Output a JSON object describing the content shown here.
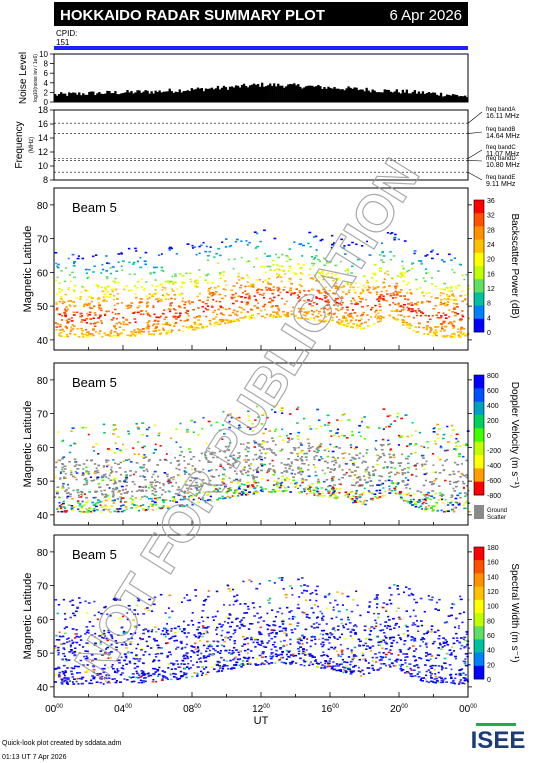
{
  "header": {
    "title": "HOKKAIDO RADAR SUMMARY PLOT",
    "date": "6 Apr 2026",
    "cpid_label": "CPID:",
    "cpid_value": "151"
  },
  "noise_panel": {
    "ylabel_main": "Noise Level",
    "ylabel_sub": "log10(noise lev / 1e6)",
    "ticks": [
      "10",
      "8",
      "6",
      "4",
      "2",
      "0"
    ]
  },
  "freq_panel": {
    "ylabel_main": "Frequency",
    "ylabel_sub": "(MHz)",
    "ticks": [
      "18",
      "16",
      "14",
      "12",
      "10",
      "8"
    ],
    "bands": [
      {
        "name": "freq bandA",
        "value": "16.11 MHz",
        "mhz": 16.11
      },
      {
        "name": "freq bandB",
        "value": "14.64 MHz",
        "mhz": 14.64
      },
      {
        "name": "freq bandC",
        "value": "11.07 MHz",
        "mhz": 11.07
      },
      {
        "name": "freq bandD",
        "value": "10.80 MHz",
        "mhz": 10.8
      },
      {
        "name": "freq bandE",
        "value": "9.11 MHz",
        "mhz": 9.11
      }
    ]
  },
  "panels": [
    {
      "id": "power",
      "beam_label": "Beam  5",
      "ylabel": "Magnetic Latitude",
      "lat_ticks": [
        "80",
        "70",
        "60",
        "50",
        "40"
      ],
      "cbar_label": "Backscatter Power (dB)",
      "cbar_ticks": [
        "36",
        "32",
        "28",
        "24",
        "20",
        "16",
        "12",
        "8",
        "4",
        "0"
      ],
      "cbar_colors": [
        "#ff0000",
        "#ff5000",
        "#ff9000",
        "#ffc000",
        "#ffff00",
        "#c0ff00",
        "#60e060",
        "#00c0a0",
        "#0080ff",
        "#0000ff"
      ]
    },
    {
      "id": "velocity",
      "beam_label": "Beam  5",
      "ylabel": "Magnetic Latitude",
      "lat_ticks": [
        "80",
        "70",
        "60",
        "50",
        "40"
      ],
      "cbar_label": "Doppler Velocity (m s⁻¹)",
      "cbar_ticks": [
        "800",
        "600",
        "400",
        "200",
        "0",
        "-200",
        "-400",
        "-600",
        "-800"
      ],
      "cbar_colors": [
        "#0000ff",
        "#0050ff",
        "#00a0c0",
        "#00d060",
        "#40ff00",
        "#c0ff00",
        "#ffff00",
        "#ffa000",
        "#ff0000"
      ],
      "ground_scatter_label": "Ground\nScatter"
    },
    {
      "id": "width",
      "beam_label": "Beam  5",
      "ylabel": "Magnetic Latitude",
      "lat_ticks": [
        "80",
        "70",
        "60",
        "50",
        "40"
      ],
      "cbar_label": "Spectral Width (m s⁻¹)",
      "cbar_ticks": [
        "180",
        "160",
        "140",
        "120",
        "100",
        "80",
        "60",
        "40",
        "20",
        "0"
      ],
      "cbar_colors": [
        "#ff0000",
        "#ff5000",
        "#ff9000",
        "#ffc000",
        "#ffff00",
        "#c0ff00",
        "#60e060",
        "#00c0a0",
        "#0080ff",
        "#0000ff"
      ]
    }
  ],
  "x_axis": {
    "label": "UT",
    "ticks": [
      "00",
      "04",
      "08",
      "12",
      "16",
      "20",
      "00"
    ],
    "tick_suffix": "00"
  },
  "watermark": "NOT FOR PUBLICATION",
  "footer": {
    "line1": "Quick-look plot created by sddata.adm",
    "line2": "01:13 UT  7 Apr 2026",
    "logo": "ISEE"
  },
  "chart_data": [
    {
      "type": "area",
      "title": "Noise Level",
      "ylabel": "Noise Level",
      "ylim": [
        0,
        10
      ],
      "x": [
        "00:00",
        "02:00",
        "04:00",
        "06:00",
        "08:00",
        "10:00",
        "12:00",
        "14:00",
        "16:00",
        "18:00",
        "20:00",
        "22:00",
        "24:00"
      ],
      "values": [
        1.5,
        1.8,
        2.0,
        2.2,
        2.6,
        3.0,
        3.6,
        3.4,
        3.0,
        2.6,
        2.2,
        1.8,
        1.2
      ]
    },
    {
      "type": "line",
      "title": "Frequency",
      "ylabel": "Frequency (MHz)",
      "ylim": [
        8,
        18
      ],
      "series": [
        {
          "name": "freq bandA",
          "values": [
            16.11
          ]
        },
        {
          "name": "freq bandB",
          "values": [
            14.64
          ]
        },
        {
          "name": "freq bandC",
          "values": [
            11.07
          ]
        },
        {
          "name": "freq bandD",
          "values": [
            10.8
          ]
        },
        {
          "name": "freq bandE",
          "values": [
            9.11
          ]
        }
      ]
    },
    {
      "type": "heatmap",
      "title": "Beam 5",
      "xlabel": "UT",
      "ylabel": "Magnetic Latitude",
      "xlim": [
        0,
        24
      ],
      "ylim": [
        37,
        85
      ],
      "colorbar": "Backscatter Power (dB)",
      "clim": [
        0,
        36
      ]
    },
    {
      "type": "heatmap",
      "title": "Beam 5",
      "xlabel": "UT",
      "ylabel": "Magnetic Latitude",
      "xlim": [
        0,
        24
      ],
      "ylim": [
        37,
        85
      ],
      "colorbar": "Doppler Velocity (m s-1)",
      "clim": [
        -800,
        800
      ]
    },
    {
      "type": "heatmap",
      "title": "Beam 5",
      "xlabel": "UT",
      "ylabel": "Magnetic Latitude",
      "xlim": [
        0,
        24
      ],
      "ylim": [
        37,
        85
      ],
      "colorbar": "Spectral Width (m s-1)",
      "clim": [
        0,
        180
      ]
    }
  ]
}
